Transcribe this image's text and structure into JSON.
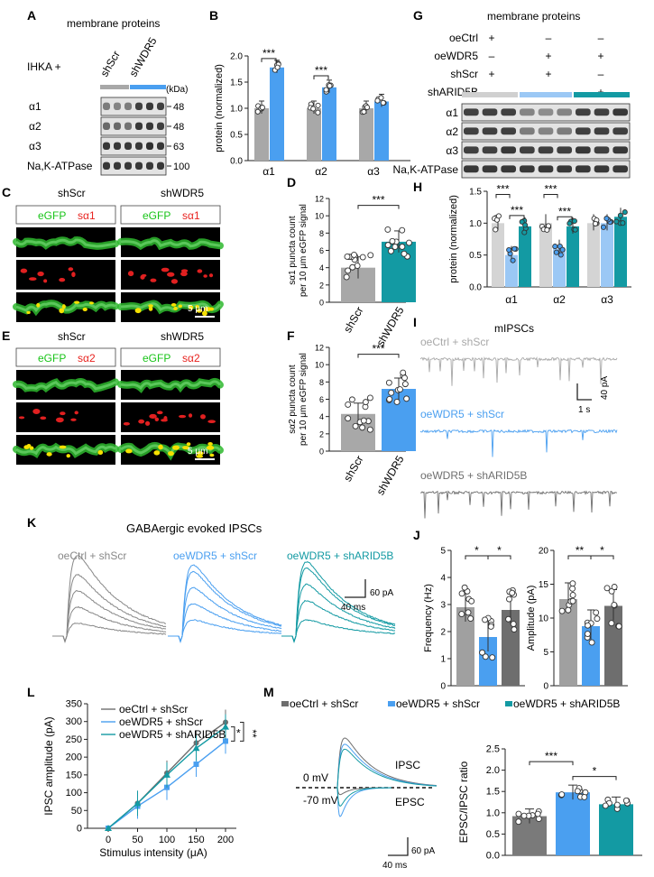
{
  "colors": {
    "gray": "#a8a8a8",
    "blue": "#4a9ff0",
    "teal": "#139aa3",
    "dark": "#6e6e6e",
    "green": "#19c419",
    "red": "#e8231f"
  },
  "panels": {
    "A": {
      "letter": "A",
      "title": "membrane proteins",
      "condition": "IHKA +",
      "lanes": [
        "shScr",
        "shWDR5"
      ],
      "unit": "(kDa)",
      "rows": [
        {
          "label": "α1",
          "kda": "48"
        },
        {
          "label": "α2",
          "kda": "48"
        },
        {
          "label": "α3",
          "kda": "63"
        },
        {
          "label": "Na,K-ATPase",
          "kda": "100"
        }
      ]
    },
    "B": {
      "letter": "B",
      "sig": [
        "***",
        "***"
      ]
    },
    "C": {
      "letter": "C",
      "headers": [
        "shScr",
        "shWDR5"
      ],
      "ch_a": "eGFP",
      "ch_b": "sα1",
      "scale": "5 μm"
    },
    "D": {
      "letter": "D",
      "sig": "***"
    },
    "E": {
      "letter": "E",
      "headers": [
        "shScr",
        "shWDR5"
      ],
      "ch_a": "eGFP",
      "ch_b": "sα2",
      "scale": "5 μm"
    },
    "F": {
      "letter": "F",
      "sig": "***"
    },
    "G": {
      "letter": "G",
      "title": "membrane proteins",
      "cond_rows": [
        {
          "label": "oeCtrl",
          "marks": [
            "+",
            "–",
            "–"
          ]
        },
        {
          "label": "oeWDR5",
          "marks": [
            "–",
            "+",
            "+"
          ]
        },
        {
          "label": "shScr",
          "marks": [
            "+",
            "+",
            "–"
          ]
        },
        {
          "label": "shARID5B",
          "marks": [
            "–",
            "–",
            "+"
          ]
        }
      ],
      "rows": [
        "α1",
        "α2",
        "α3",
        "Na,K-ATPase"
      ]
    },
    "H": {
      "letter": "H",
      "sig": [
        "***",
        "***",
        "***",
        "***"
      ]
    },
    "I": {
      "letter": "I",
      "title": "mIPSCs",
      "traces": [
        "oeCtrl + shScr",
        "oeWDR5 + shScr",
        "oeWDR5 + shARID5B"
      ],
      "scale_x": "1 s",
      "scale_y": "40 pA"
    },
    "J": {
      "letter": "J",
      "sig_freq": [
        "*",
        "*"
      ],
      "sig_amp": [
        "**",
        "*"
      ]
    },
    "K": {
      "letter": "K",
      "title": "GABAergic evoked IPSCs",
      "traces": [
        "oeCtrl + shScr",
        "oeWDR5 + shScr",
        "oeWDR5 + shARID5B"
      ],
      "scale_x": "40 ms",
      "scale_y": "60 pA"
    },
    "L": {
      "letter": "L",
      "sig": [
        "*",
        "**"
      ]
    },
    "M": {
      "letter": "M",
      "legend": [
        "oeCtrl + shScr",
        "oeWDR5 + shScr",
        "oeWDR5 + shARID5B"
      ],
      "v_hold": [
        "0 mV",
        "-70 mV"
      ],
      "labels": [
        "IPSC",
        "EPSC"
      ],
      "scale_x": "40 ms",
      "scale_y": "60 pA",
      "sig": [
        "***",
        "*"
      ]
    }
  },
  "chart_data": [
    {
      "id": "B",
      "type": "bar",
      "categories": [
        "α1",
        "α2",
        "α3"
      ],
      "series": [
        {
          "name": "shScr",
          "values": [
            1.0,
            1.0,
            1.0
          ]
        },
        {
          "name": "shWDR5",
          "values": [
            1.78,
            1.4,
            1.13
          ]
        }
      ],
      "xlabel": "",
      "ylabel": "protein (normalized)",
      "ylim": [
        0,
        2
      ],
      "yticks": [
        0.0,
        0.5,
        1.0,
        1.5,
        2.0
      ]
    },
    {
      "id": "D",
      "type": "bar",
      "categories": [
        "shScr",
        "shWDR5"
      ],
      "values": [
        4.0,
        7.0
      ],
      "ylabel": "sα1 puncta count per 10 μm eGFP signal",
      "ylim": [
        0,
        12
      ],
      "yticks": [
        0,
        2,
        4,
        6,
        8,
        10,
        12
      ]
    },
    {
      "id": "F",
      "type": "bar",
      "categories": [
        "shScr",
        "shWDR5"
      ],
      "values": [
        4.3,
        7.2
      ],
      "ylabel": "sα2 puncta count per 10 μm eGFP signal",
      "ylim": [
        0,
        12
      ],
      "yticks": [
        0,
        2,
        4,
        6,
        8,
        10,
        12
      ]
    },
    {
      "id": "H",
      "type": "bar",
      "categories": [
        "α1",
        "α2",
        "α3"
      ],
      "series": [
        {
          "name": "oeCtrl + shScr",
          "values": [
            1.0,
            1.0,
            1.0
          ]
        },
        {
          "name": "oeWDR5 + shScr",
          "values": [
            0.5,
            0.6,
            1.0
          ]
        },
        {
          "name": "oeWDR5 + shARID5B",
          "values": [
            0.95,
            0.95,
            1.1
          ]
        }
      ],
      "ylabel": "protein (normalized)",
      "ylim": [
        0,
        1.5
      ],
      "yticks": [
        0.0,
        0.5,
        1.0,
        1.5
      ]
    },
    {
      "id": "J-frequency",
      "type": "bar",
      "categories": [
        "oeCtrl + shScr",
        "oeWDR5 + shScr",
        "oeWDR5 + shARID5B"
      ],
      "values": [
        2.9,
        1.8,
        2.8
      ],
      "ylabel": "Frequency (Hz)",
      "ylim": [
        0,
        5
      ],
      "yticks": [
        0,
        1,
        2,
        3,
        4,
        5
      ]
    },
    {
      "id": "J-amplitude",
      "type": "bar",
      "categories": [
        "oeCtrl + shScr",
        "oeWDR5 + shScr",
        "oeWDR5 + shARID5B"
      ],
      "values": [
        12.8,
        8.8,
        11.8
      ],
      "ylabel": "Amplitude (pA)",
      "ylim": [
        0,
        20
      ],
      "yticks": [
        0,
        5,
        10,
        15,
        20
      ]
    },
    {
      "id": "L",
      "type": "line",
      "x": [
        0,
        50,
        100,
        150,
        200
      ],
      "series": [
        {
          "name": "oeCtrl + shScr",
          "values": [
            0,
            70,
            155,
            240,
            298
          ]
        },
        {
          "name": "oeWDR5 + shScr",
          "values": [
            0,
            62,
            115,
            180,
            245
          ]
        },
        {
          "name": "oeWDR5 + shARID5B",
          "values": [
            0,
            70,
            150,
            225,
            285
          ]
        }
      ],
      "xlabel": "Stimulus intensity (μA)",
      "ylabel": "IPSC amplitude (pA)",
      "ylim": [
        0,
        350
      ],
      "yticks": [
        0,
        50,
        100,
        150,
        200,
        250,
        300,
        350
      ],
      "xticks": [
        0,
        50,
        100,
        150,
        200
      ]
    },
    {
      "id": "M-ratio",
      "type": "bar",
      "categories": [
        "oeCtrl + shScr",
        "oeWDR5 + shScr",
        "oeWDR5 + shARID5B"
      ],
      "values": [
        0.92,
        1.48,
        1.2
      ],
      "ylabel": "EPSC/IPSC ratio",
      "ylim": [
        0,
        2.5
      ],
      "yticks": [
        0.0,
        0.5,
        1.0,
        1.5,
        2.0,
        2.5
      ]
    }
  ]
}
